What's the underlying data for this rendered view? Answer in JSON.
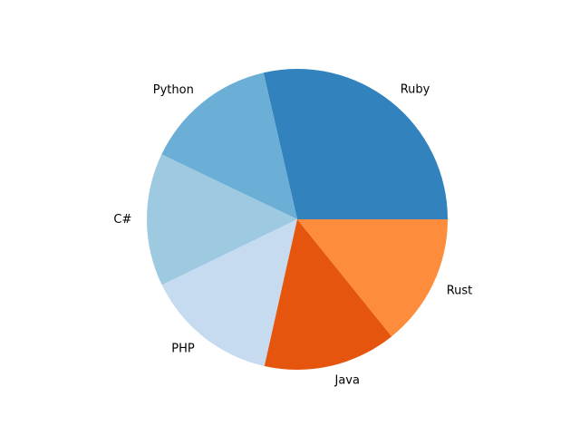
{
  "chart_data": {
    "type": "pie",
    "title": "",
    "start_angle_deg": 0,
    "direction": "counterclockwise",
    "slices": [
      {
        "label": "Ruby",
        "value": 28.6,
        "color": "#3182bd"
      },
      {
        "label": "Python",
        "value": 14.3,
        "color": "#6baed6"
      },
      {
        "label": "C#",
        "value": 14.3,
        "color": "#9ecae1"
      },
      {
        "label": "PHP",
        "value": 14.3,
        "color": "#c6dbef"
      },
      {
        "label": "Java",
        "value": 14.3,
        "color": "#e6550d"
      },
      {
        "label": "Rust",
        "value": 14.2,
        "color": "#fd8d3c"
      }
    ]
  }
}
